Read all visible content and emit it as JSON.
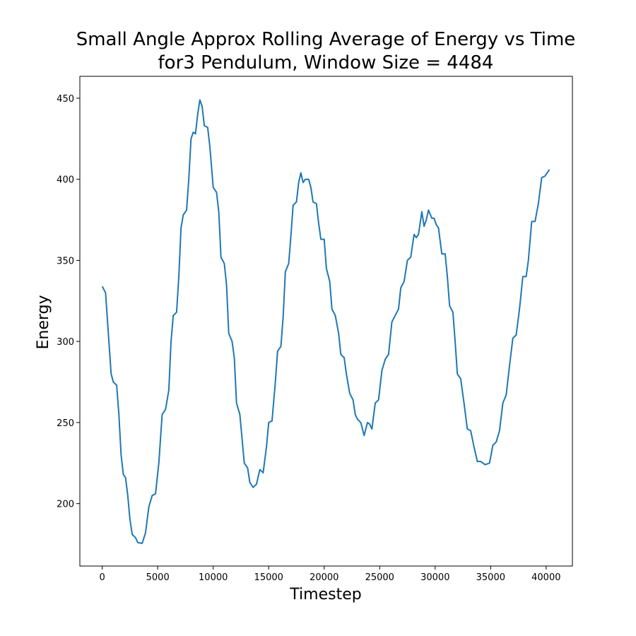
{
  "chart_data": {
    "type": "line",
    "title": "Small Angle Approx Rolling Average of Energy vs Time\nfor3 Pendulum, Window Size = 4484",
    "x_label": "Timestep",
    "y_label": "Energy",
    "color": "#1f77b4",
    "x": [
      0,
      300,
      600,
      800,
      1000,
      1300,
      1500,
      1700,
      1900,
      2100,
      2300,
      2500,
      2700,
      3000,
      3200,
      3600,
      3900,
      4200,
      4500,
      4800,
      5100,
      5400,
      5700,
      6000,
      6200,
      6400,
      6700,
      6900,
      7100,
      7300,
      7600,
      7800,
      8000,
      8200,
      8400,
      8600,
      8800,
      9000,
      9200,
      9500,
      9700,
      10000,
      10300,
      10500,
      10700,
      11000,
      11200,
      11400,
      11700,
      11900,
      12100,
      12400,
      12600,
      12800,
      13100,
      13300,
      13600,
      13900,
      14200,
      14500,
      14800,
      15000,
      15300,
      15600,
      15800,
      16100,
      16300,
      16500,
      16800,
      17000,
      17200,
      17500,
      17700,
      17900,
      18100,
      18300,
      18600,
      18800,
      19000,
      19300,
      19500,
      19700,
      20000,
      20200,
      20500,
      20700,
      21000,
      21300,
      21500,
      21800,
      22000,
      22300,
      22600,
      22800,
      23000,
      23300,
      23600,
      23900,
      24100,
      24300,
      24600,
      24900,
      25200,
      25500,
      25800,
      26100,
      26400,
      26700,
      26900,
      27200,
      27500,
      27800,
      28100,
      28300,
      28500,
      28800,
      29000,
      29200,
      29400,
      29700,
      29900,
      30100,
      30300,
      30600,
      30900,
      31100,
      31300,
      31600,
      31800,
      32000,
      32300,
      32600,
      32900,
      33200,
      33500,
      33800,
      34100,
      34500,
      34900,
      35200,
      35500,
      35800,
      36100,
      36400,
      36700,
      37000,
      37300,
      37600,
      37900,
      38200,
      38400,
      38700,
      39000,
      39300,
      39600,
      39900,
      40300
    ],
    "values": [
      334,
      330,
      300,
      280,
      275,
      273,
      255,
      230,
      218,
      216,
      205,
      190,
      181,
      179,
      176,
      175.5,
      182,
      198,
      205,
      206,
      225,
      255,
      258,
      270,
      300,
      316,
      318,
      340,
      370,
      378,
      381,
      400,
      425,
      429,
      428,
      440,
      449,
      445,
      433,
      432,
      420,
      395,
      392,
      380,
      352,
      348,
      335,
      305,
      300,
      290,
      262,
      255,
      240,
      225,
      222,
      213,
      210,
      212,
      221,
      219,
      235,
      250,
      251,
      275,
      294,
      297,
      315,
      343,
      348,
      365,
      384,
      386,
      398,
      404,
      398,
      400,
      400,
      395,
      386,
      385,
      373,
      363,
      363,
      345,
      337,
      320,
      316,
      305,
      292,
      290,
      280,
      268,
      264,
      255,
      252,
      250,
      242,
      250,
      249,
      246,
      262,
      264,
      282,
      289,
      292,
      312,
      316,
      320,
      333,
      337,
      350,
      352,
      366,
      364,
      366,
      380,
      371,
      375,
      381,
      376,
      376,
      372,
      370,
      354,
      354,
      340,
      322,
      318,
      300,
      280,
      277,
      262,
      246,
      245,
      235,
      226,
      226,
      224,
      225,
      236,
      238,
      245,
      262,
      267,
      285,
      302,
      304,
      320,
      340,
      340,
      350,
      374,
      374,
      385,
      401,
      402,
      406
    ],
    "xlim": [
      -2017,
      42367
    ],
    "ylim": [
      161.5,
      463.5
    ],
    "xticks": [
      0,
      5000,
      10000,
      15000,
      20000,
      25000,
      30000,
      35000,
      40000
    ],
    "yticks": [
      200,
      250,
      300,
      350,
      400,
      450
    ]
  }
}
